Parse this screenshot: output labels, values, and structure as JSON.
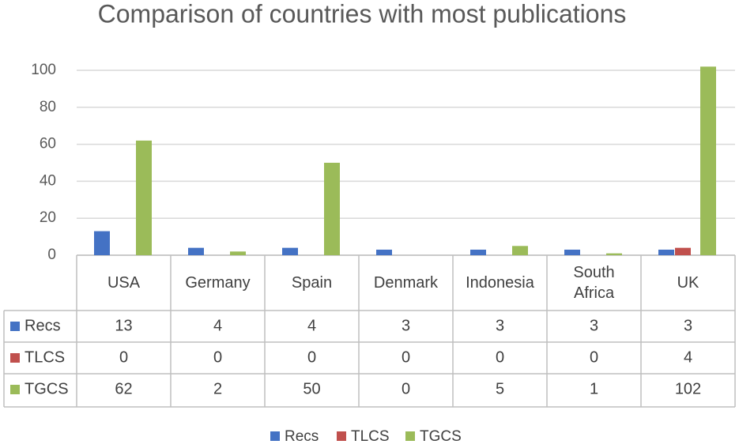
{
  "chart_data": {
    "type": "bar",
    "title": "Comparison of countries with most publications",
    "categories": [
      "USA",
      "Germany",
      "Spain",
      "Denmark",
      "Indonesia",
      "South Africa",
      "UK"
    ],
    "series": [
      {
        "name": "Recs",
        "color": "#4472c4",
        "values": [
          13,
          4,
          4,
          3,
          3,
          3,
          3
        ]
      },
      {
        "name": "TLCS",
        "color": "#c0504d",
        "values": [
          0,
          0,
          0,
          0,
          0,
          0,
          4
        ]
      },
      {
        "name": "TGCS",
        "color": "#9bbb59",
        "values": [
          62,
          2,
          50,
          0,
          5,
          1,
          102
        ]
      }
    ],
    "ylim": [
      0,
      100
    ],
    "yticks": [
      0,
      20,
      40,
      60,
      80,
      100
    ],
    "grid": true,
    "legend": "bottom",
    "data_table": true
  }
}
